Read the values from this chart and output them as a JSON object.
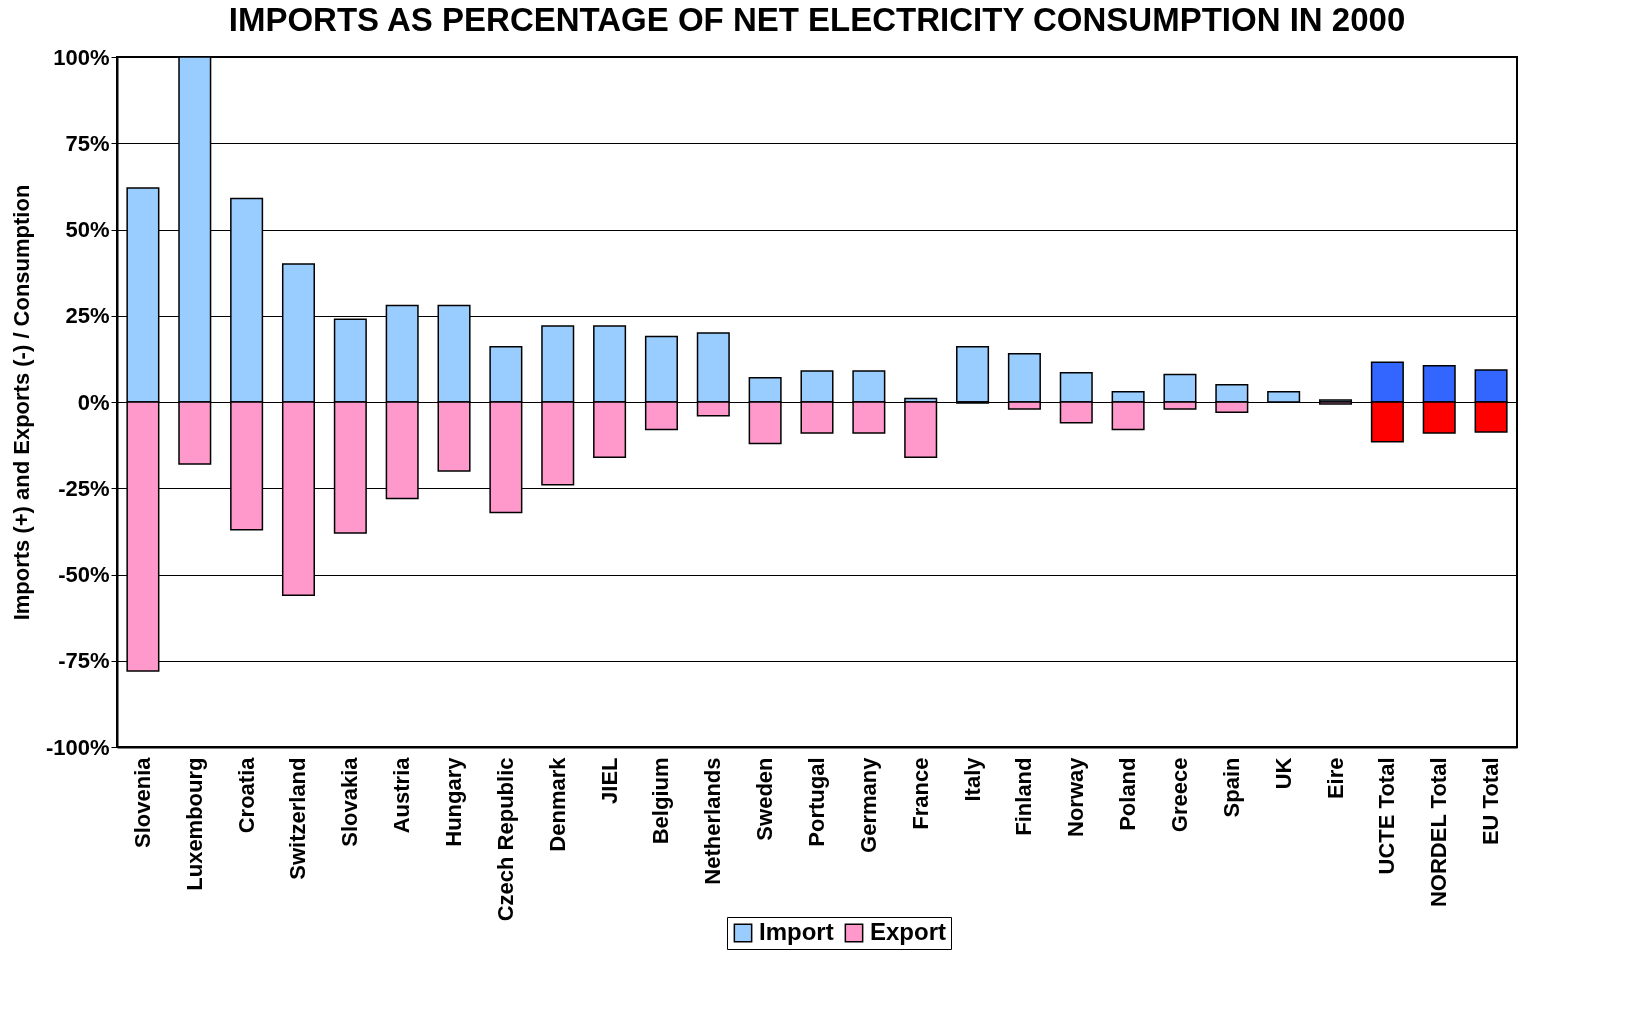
{
  "chart_data": {
    "type": "bar",
    "title": "IMPORTS AS PERCENTAGE OF NET ELECTRICITY CONSUMPTION IN 2000",
    "ylabel": "Imports (+) and Exports (-) / Consumption",
    "categories": [
      "Slovenia",
      "Luxembourg",
      "Croatia",
      "Switzerland",
      "Slovakia",
      "Austria",
      "Hungary",
      "Czech Republic",
      "Denmark",
      "JIEL",
      "Belgium",
      "Netherlands",
      "Sweden",
      "Portugal",
      "Germany",
      "France",
      "Italy",
      "Finland",
      "Norway",
      "Poland",
      "Greece",
      "Spain",
      "UK",
      "Eire",
      "UCTE Total",
      "NORDEL Total",
      "EU Total"
    ],
    "series": [
      {
        "name": "Import",
        "color": "#99ccff",
        "colors": [
          "#99ccff",
          "#99ccff",
          "#99ccff",
          "#99ccff",
          "#99ccff",
          "#99ccff",
          "#99ccff",
          "#99ccff",
          "#99ccff",
          "#99ccff",
          "#99ccff",
          "#99ccff",
          "#99ccff",
          "#99ccff",
          "#99ccff",
          "#99ccff",
          "#99ccff",
          "#99ccff",
          "#99ccff",
          "#99ccff",
          "#99ccff",
          "#99ccff",
          "#99ccff",
          "#99ccff",
          "#3366ff",
          "#3366ff",
          "#3366ff"
        ],
        "values": [
          62,
          100,
          59,
          40,
          24,
          28,
          28,
          16,
          22,
          22,
          19,
          20,
          7,
          9,
          9,
          1,
          16,
          14,
          8.5,
          3,
          8,
          5,
          3,
          0.6,
          11.5,
          10.5,
          9.3
        ]
      },
      {
        "name": "Export",
        "color": "#ff99cc",
        "colors": [
          "#ff99cc",
          "#ff99cc",
          "#ff99cc",
          "#ff99cc",
          "#ff99cc",
          "#ff99cc",
          "#ff99cc",
          "#ff99cc",
          "#ff99cc",
          "#ff99cc",
          "#ff99cc",
          "#ff99cc",
          "#ff99cc",
          "#ff99cc",
          "#ff99cc",
          "#ff99cc",
          "#ff99cc",
          "#ff99cc",
          "#ff99cc",
          "#ff99cc",
          "#ff99cc",
          "#ff99cc",
          "#ff99cc",
          "#ff99cc",
          "#ff0000",
          "#ff0000",
          "#ff0000"
        ],
        "values": [
          -78,
          -18,
          -37,
          -56,
          -38,
          -28,
          -20,
          -32,
          -24,
          -16,
          -8,
          -4,
          -12,
          -9,
          -9,
          -16,
          -0.3,
          -2,
          -6,
          -8,
          -2,
          -3,
          null,
          -0.6,
          -11.5,
          -9,
          -8.7
        ]
      }
    ],
    "ylim": [
      -100,
      100
    ],
    "yticks": [
      {
        "value": -100,
        "label": "-100%"
      },
      {
        "value": -75,
        "label": "-75%"
      },
      {
        "value": -50,
        "label": "-50%"
      },
      {
        "value": -25,
        "label": "-25%"
      },
      {
        "value": 0,
        "label": "0%"
      },
      {
        "value": 25,
        "label": "25%"
      },
      {
        "value": 50,
        "label": "50%"
      },
      {
        "value": 75,
        "label": "75%"
      },
      {
        "value": 100,
        "label": "100%"
      }
    ],
    "grid": "y",
    "legend": "bottom",
    "stacked": true
  }
}
